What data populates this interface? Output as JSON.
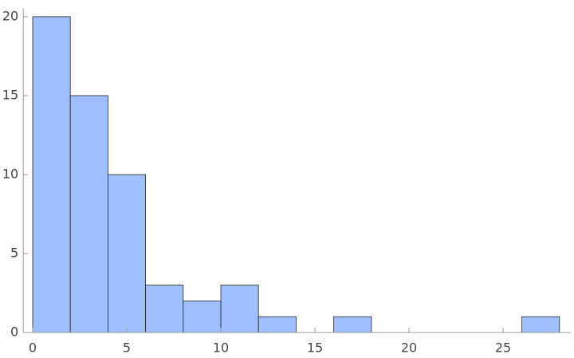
{
  "chart_data": {
    "type": "histogram",
    "bins": [
      0,
      2,
      4,
      6,
      8,
      10,
      12,
      14,
      16,
      18,
      20,
      22,
      24,
      26,
      28
    ],
    "counts": [
      20,
      15,
      10,
      3,
      2,
      3,
      1,
      0,
      1,
      0,
      0,
      0,
      0,
      1
    ],
    "color": "#9fbfff",
    "xlim": [
      -0.5,
      28.6
    ],
    "ylim": [
      0,
      20.5
    ],
    "xticks": [
      0,
      5,
      10,
      15,
      20,
      25
    ],
    "yticks": [
      0,
      5,
      10,
      15,
      20
    ]
  }
}
